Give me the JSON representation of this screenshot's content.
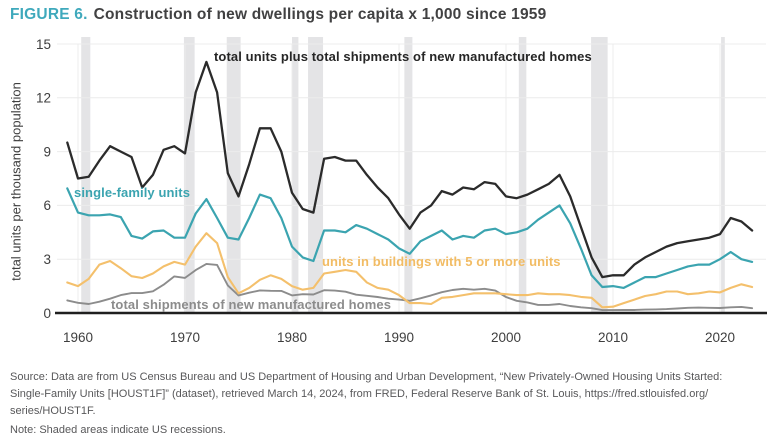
{
  "title": {
    "label": "FIGURE 6.",
    "text": "Construction of new dwellings per capita x 1,000 since 1959"
  },
  "source": {
    "lines": [
      "Source: Data are from US Census Bureau and US Department of Housing and Urban Development, “New Privately-Owned Housing Units Started:",
      "Single-Family Units [HOUST1F]” (dataset), retrieved March 14, 2024, from FRED, Federal Reserve Bank of St. Louis, https://fred.stlouisfed.org/",
      "series/HOUST1F."
    ]
  },
  "note": {
    "text": "Note: Shaded areas indicate US recessions."
  },
  "colors": {
    "title_accent": "#3fa9bc",
    "title_text": "#414142",
    "axis_text": "#3e3e3e",
    "grid": "#ececec",
    "recession_band": "#e4e4e6",
    "baseline": "#1f1f1f",
    "source_text": "#58585a"
  },
  "chart_data": {
    "type": "line",
    "title": "Construction of new dwellings per capita x 1,000 since 1959",
    "xlabel": "",
    "ylabel": "total units per thousand population",
    "ylim": [
      0,
      15
    ],
    "yticks": [
      0,
      3,
      6,
      9,
      12,
      15
    ],
    "xticks": [
      1960,
      1970,
      1980,
      1990,
      2000,
      2010,
      2020
    ],
    "grid": true,
    "legend_position": "inline-labels",
    "x_range": [
      1959,
      2023
    ],
    "x_step_years": 1,
    "recessions": [
      [
        1960.3,
        1961.15
      ],
      [
        1969.9,
        1970.9
      ],
      [
        1973.9,
        1975.2
      ],
      [
        1980.0,
        1980.6
      ],
      [
        1981.5,
        1982.9
      ],
      [
        1990.5,
        1991.25
      ],
      [
        2001.2,
        2001.9
      ],
      [
        2007.95,
        2009.5
      ],
      [
        2020.1,
        2020.45
      ]
    ],
    "series": [
      {
        "name": "total units plus total shipments of new manufactured homes",
        "color": "#2b2b2b",
        "values": [
          9.5,
          7.5,
          7.6,
          8.5,
          9.3,
          9.0,
          8.7,
          7.0,
          7.7,
          9.1,
          9.3,
          8.9,
          12.3,
          14.0,
          12.3,
          7.8,
          6.5,
          8.3,
          10.3,
          10.3,
          9.0,
          6.7,
          5.8,
          5.6,
          8.6,
          8.7,
          8.5,
          8.5,
          7.7,
          7.0,
          6.4,
          5.5,
          4.7,
          5.6,
          6.0,
          6.8,
          6.6,
          7.0,
          6.9,
          7.3,
          7.2,
          6.5,
          6.4,
          6.6,
          6.9,
          7.2,
          7.7,
          6.5,
          4.8,
          3.1,
          2.0,
          2.1,
          2.1,
          2.7,
          3.1,
          3.4,
          3.7,
          3.9,
          4.0,
          4.1,
          4.2,
          4.4,
          5.3,
          5.1,
          4.6
        ]
      },
      {
        "name": "single-family units",
        "color": "#3ba4b0",
        "values": [
          6.95,
          5.6,
          5.45,
          5.45,
          5.5,
          5.35,
          4.3,
          4.15,
          4.55,
          4.6,
          4.2,
          4.2,
          5.55,
          6.35,
          5.3,
          4.2,
          4.1,
          5.3,
          6.6,
          6.4,
          5.3,
          3.7,
          3.1,
          2.9,
          4.6,
          4.6,
          4.5,
          4.9,
          4.7,
          4.4,
          4.1,
          3.6,
          3.3,
          4.0,
          4.3,
          4.6,
          4.1,
          4.3,
          4.2,
          4.6,
          4.7,
          4.4,
          4.5,
          4.7,
          5.2,
          5.6,
          6.0,
          5.0,
          3.6,
          2.1,
          1.45,
          1.5,
          1.4,
          1.7,
          2.0,
          2.0,
          2.2,
          2.4,
          2.6,
          2.7,
          2.7,
          3.0,
          3.4,
          3.0,
          2.85
        ]
      },
      {
        "name": "units in buildings with 5 or more units",
        "color": "#f4c06c",
        "values": [
          1.7,
          1.5,
          1.9,
          2.7,
          2.9,
          2.5,
          2.05,
          1.95,
          2.2,
          2.6,
          2.85,
          2.7,
          3.7,
          4.45,
          3.9,
          2.0,
          1.1,
          1.4,
          1.85,
          2.1,
          1.9,
          1.5,
          1.3,
          1.4,
          2.2,
          2.3,
          2.4,
          2.3,
          1.7,
          1.4,
          1.3,
          1.0,
          0.55,
          0.55,
          0.5,
          0.85,
          0.9,
          1.0,
          1.1,
          1.1,
          1.1,
          1.05,
          1.0,
          1.0,
          1.1,
          1.05,
          1.05,
          1.0,
          0.9,
          0.85,
          0.32,
          0.35,
          0.55,
          0.75,
          0.95,
          1.05,
          1.2,
          1.2,
          1.05,
          1.1,
          1.2,
          1.15,
          1.4,
          1.6,
          1.45
        ]
      },
      {
        "name": "total shipments of new manufactured homes",
        "color": "#8c8c8c",
        "values": [
          0.7,
          0.57,
          0.5,
          0.63,
          0.8,
          1.0,
          1.11,
          1.11,
          1.21,
          1.58,
          2.04,
          1.96,
          2.39,
          2.74,
          2.68,
          1.54,
          0.98,
          1.13,
          1.26,
          1.24,
          1.23,
          0.98,
          1.05,
          1.03,
          1.27,
          1.25,
          1.19,
          1.02,
          0.96,
          0.89,
          0.8,
          0.75,
          0.68,
          0.82,
          0.98,
          1.16,
          1.28,
          1.35,
          1.3,
          1.35,
          1.25,
          0.89,
          0.68,
          0.59,
          0.45,
          0.45,
          0.5,
          0.39,
          0.32,
          0.27,
          0.16,
          0.16,
          0.17,
          0.17,
          0.19,
          0.2,
          0.22,
          0.25,
          0.29,
          0.3,
          0.29,
          0.28,
          0.32,
          0.34,
          0.27
        ]
      }
    ]
  }
}
